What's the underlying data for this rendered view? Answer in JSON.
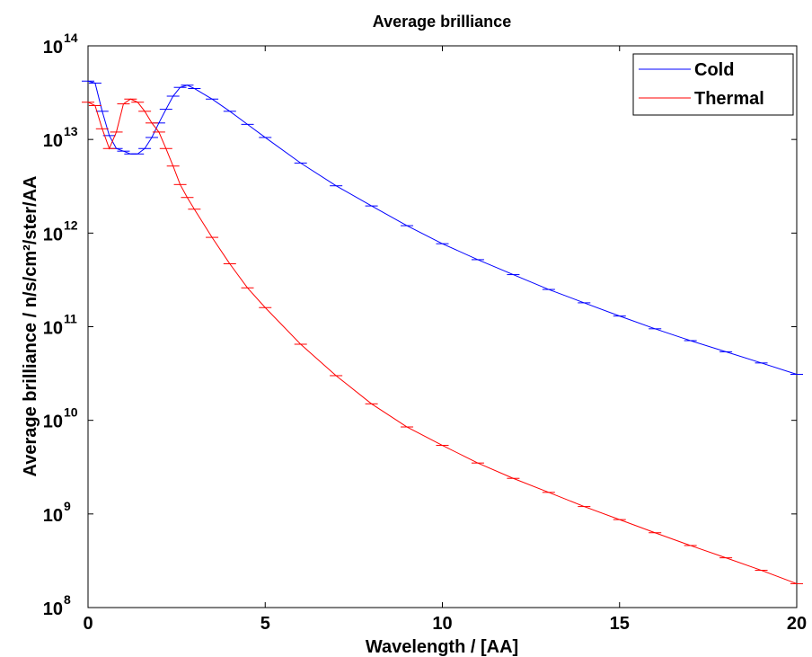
{
  "chart_data": {
    "type": "line",
    "title": "Average brilliance",
    "xlabel": "Wavelength / [AA]",
    "ylabel": "Average brilliance / n/s/cm²/ster/AA",
    "log_y": true,
    "legend": "upper right",
    "x": [
      0,
      0.2,
      0.4,
      0.6,
      0.8,
      1,
      1.2,
      1.4,
      1.6,
      1.8,
      2,
      2.2,
      2.4,
      2.6,
      2.8,
      3,
      3.5,
      4,
      4.5,
      5,
      6,
      7,
      8,
      9,
      10,
      11,
      12,
      13,
      14,
      15,
      16,
      17,
      18,
      19,
      20
    ],
    "series": [
      {
        "name": "Cold",
        "color": "#0000ff",
        "values": [
          42000000000000.0,
          40000000000000.0,
          20000000000000.0,
          11000000000000.0,
          8000000000000.0,
          7500000000000.0,
          7000000000000.0,
          7000000000000.0,
          8000000000000.0,
          10500000000000.0,
          15000000000000.0,
          21000000000000.0,
          29000000000000.0,
          36000000000000.0,
          38000000000000.0,
          35000000000000.0,
          27000000000000.0,
          20000000000000.0,
          14500000000000.0,
          10500000000000.0,
          5600000000000.0,
          3200000000000.0,
          1950000000000.0,
          1200000000000.0,
          770000000000.0,
          520000000000.0,
          360000000000.0,
          250000000000.0,
          180000000000.0,
          130000000000.0,
          95000000000.0,
          71000000000.0,
          54000000000.0,
          41000000000.0,
          31000000000.0
        ]
      },
      {
        "name": "Thermal",
        "color": "#ff0000",
        "values": [
          25000000000000.0,
          23000000000000.0,
          13000000000000.0,
          8000000000000.0,
          12000000000000.0,
          24000000000000.0,
          27000000000000.0,
          25000000000000.0,
          20000000000000.0,
          15000000000000.0,
          12000000000000.0,
          8000000000000.0,
          5200000000000.0,
          3300000000000.0,
          2400000000000.0,
          1800000000000.0,
          900000000000.0,
          470000000000.0,
          260000000000.0,
          160000000000.0,
          65000000000.0,
          30000000000.0,
          15000000000.0,
          8500000000.0,
          5400000000.0,
          3500000000.0,
          2400000000.0,
          1700000000.0,
          1200000000.0,
          870000000.0,
          630000000.0,
          460000000.0,
          340000000.0,
          250000000.0,
          180000000.0
        ]
      }
    ],
    "xlim": [
      0,
      20
    ],
    "xticks": [
      0,
      5,
      10,
      15,
      20
    ],
    "ylim": [
      100000000,
      100000000000000
    ],
    "yticks": [
      {
        "value": 100000000,
        "label": "10",
        "exponent": "8"
      },
      {
        "value": 1000000000,
        "label": "10",
        "exponent": "9"
      },
      {
        "value": 10000000000,
        "label": "10",
        "exponent": "10"
      },
      {
        "value": 100000000000,
        "label": "10",
        "exponent": "11"
      },
      {
        "value": 1000000000000,
        "label": "10",
        "exponent": "12"
      },
      {
        "value": 10000000000000,
        "label": "10",
        "exponent": "13"
      },
      {
        "value": 100000000000000,
        "label": "10",
        "exponent": "14"
      }
    ]
  }
}
